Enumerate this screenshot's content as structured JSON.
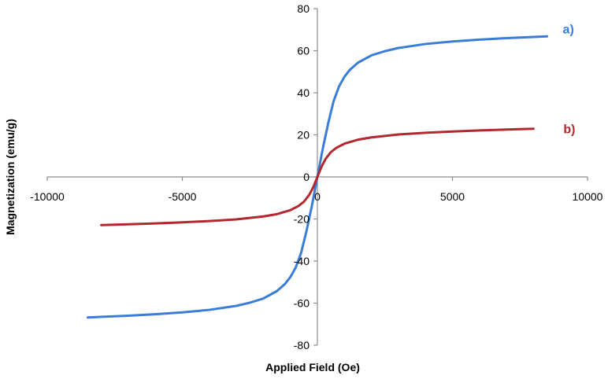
{
  "chart_data": {
    "type": "line",
    "title": "",
    "xlabel": "Applied Field (Oe)",
    "ylabel": "Magnetization (emu/g)",
    "xlim": [
      -10000,
      10000
    ],
    "ylim": [
      -80,
      80
    ],
    "x_ticks": [
      -10000,
      -5000,
      0,
      5000,
      10000
    ],
    "y_ticks": [
      -80,
      -60,
      -40,
      -20,
      0,
      20,
      40,
      60,
      80
    ],
    "grid": false,
    "series": [
      {
        "name": "a)",
        "color": "#3a7dd8",
        "x": [
          -8500,
          -7000,
          -6000,
          -5000,
          -4000,
          -3000,
          -2500,
          -2000,
          -1500,
          -1200,
          -1000,
          -800,
          -600,
          -400,
          -200,
          0,
          200,
          400,
          600,
          800,
          1000,
          1200,
          1500,
          2000,
          2500,
          3000,
          4000,
          5000,
          6000,
          7000,
          8500
        ],
        "y": [
          -66.8,
          -66.0,
          -65.3,
          -64.4,
          -63.2,
          -61.3,
          -59.8,
          -57.8,
          -54.3,
          -50.9,
          -47.6,
          -43.0,
          -36.0,
          -25.5,
          -13.5,
          0,
          13.5,
          25.5,
          36.0,
          43.0,
          47.6,
          50.9,
          54.3,
          57.8,
          59.8,
          61.3,
          63.2,
          64.4,
          65.3,
          66.0,
          66.8
        ]
      },
      {
        "name": "b)",
        "color": "#b3282e",
        "x": [
          -8000,
          -7000,
          -6000,
          -5000,
          -4000,
          -3000,
          -2000,
          -1500,
          -1000,
          -700,
          -500,
          -300,
          -150,
          0,
          150,
          300,
          500,
          700,
          1000,
          1500,
          2000,
          3000,
          4000,
          5000,
          6000,
          7000,
          8000
        ],
        "y": [
          -22.9,
          -22.5,
          -22.1,
          -21.6,
          -21.0,
          -20.2,
          -18.8,
          -17.7,
          -15.8,
          -13.8,
          -11.8,
          -8.5,
          -4.8,
          0,
          4.8,
          8.5,
          11.8,
          13.8,
          15.8,
          17.7,
          18.8,
          20.2,
          21.0,
          21.6,
          22.1,
          22.5,
          22.9
        ]
      }
    ]
  }
}
